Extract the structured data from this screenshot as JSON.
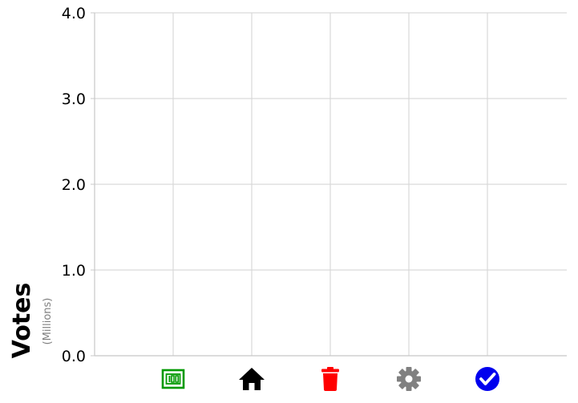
{
  "chart_data": {
    "type": "bar",
    "ylabel": "Votes",
    "ylabel_unit": "(Millions)",
    "ylim": [
      0,
      4.0
    ],
    "y_ticks": [
      "0.0",
      "1.0",
      "2.0",
      "3.0",
      "4.0"
    ],
    "grid": true,
    "categories": [
      {
        "icon": "money-icon",
        "color": "#009900"
      },
      {
        "icon": "home-icon",
        "color": "#000000"
      },
      {
        "icon": "trash-icon",
        "color": "#ff0000"
      },
      {
        "icon": "gear-icon",
        "color": "#808080"
      },
      {
        "icon": "check-circle-icon",
        "color": "#0000ee"
      }
    ],
    "values": [
      null,
      null,
      null,
      null,
      null
    ]
  }
}
